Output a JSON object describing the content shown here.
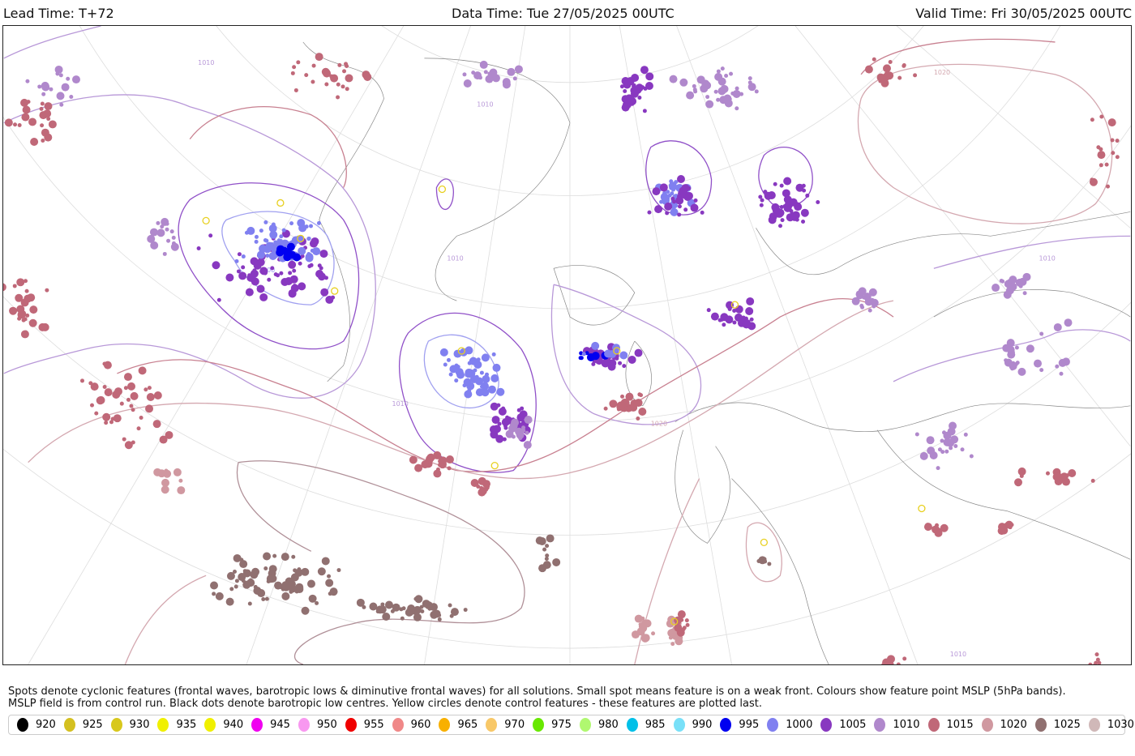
{
  "header": {
    "lead_time": "Lead Time: T+72",
    "data_time": "Data Time: Tue 27/05/2025 00UTC",
    "valid_time": "Valid Time: Fri 30/05/2025 00UTC"
  },
  "caption": {
    "line1": "Spots denote cyclonic features (frontal waves, barotropic lows & diminutive frontal waves) for all solutions. Small spot means feature is on a weak front. Colours show feature point MSLP (5hPa bands).",
    "line2": "MSLP field is from control run. Black dots denote barotropic low centres. Yellow circles denote control features - these features are plotted last."
  },
  "legend": [
    {
      "label": "920",
      "color": "#000000"
    },
    {
      "label": "925",
      "color": "#d4c020"
    },
    {
      "label": "930",
      "color": "#d8c81c"
    },
    {
      "label": "935",
      "color": "#f0f000"
    },
    {
      "label": "940",
      "color": "#f0f000"
    },
    {
      "label": "945",
      "color": "#f000f0"
    },
    {
      "label": "950",
      "color": "#f898f0"
    },
    {
      "label": "955",
      "color": "#f00000"
    },
    {
      "label": "960",
      "color": "#f08888"
    },
    {
      "label": "965",
      "color": "#f8b000"
    },
    {
      "label": "970",
      "color": "#f8c868"
    },
    {
      "label": "975",
      "color": "#68e800"
    },
    {
      "label": "980",
      "color": "#b0f870"
    },
    {
      "label": "985",
      "color": "#00c0e8"
    },
    {
      "label": "990",
      "color": "#78e0f8"
    },
    {
      "label": "995",
      "color": "#0000f0"
    },
    {
      "label": "1000",
      "color": "#8080f0"
    },
    {
      "label": "1005",
      "color": "#8838c0"
    },
    {
      "label": "1010",
      "color": "#b088cc"
    },
    {
      "label": "1015",
      "color": "#c06878"
    },
    {
      "label": "1020",
      "color": "#d098a0"
    },
    {
      "label": "1025",
      "color": "#907070"
    },
    {
      "label": "1030",
      "color": "#d0b8b8"
    },
    {
      "label": "",
      "color": "#c8e0e0"
    }
  ],
  "contour_labels": [
    "1010",
    "1010",
    "1010",
    "1020",
    "1020",
    "1010",
    "1000",
    "1010",
    "1010"
  ]
}
